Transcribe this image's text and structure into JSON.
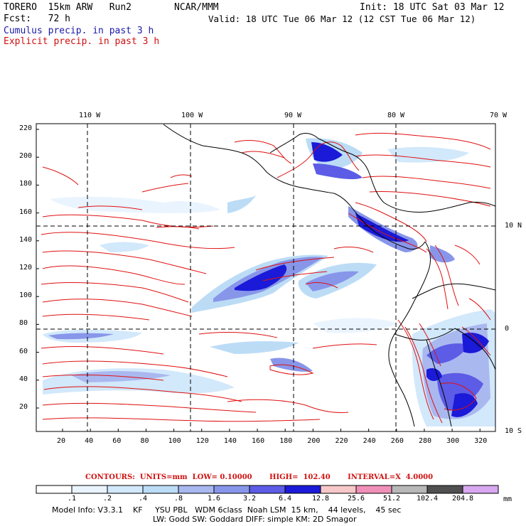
{
  "header": {
    "model": "TORERO  15km ARW   Run2",
    "org": "NCAR/MMM",
    "init": "Init: 18 UTC Sat 03 Mar 12",
    "fcst": "Fcst:   72 h",
    "valid": "Valid: 18 UTC Tue 06 Mar 12 (12 CST Tue 06 Mar 12)",
    "field1": "Cumulus precip. in past 3 h",
    "field2": "Explicit precip. in past 3 h"
  },
  "map": {
    "top_lon_labels": [
      "110 W",
      "100 W",
      "90 W",
      "80 W",
      "70 W"
    ],
    "right_lat_labels": [
      "10 N",
      "0",
      "10 S"
    ],
    "y_ticks": [
      "220",
      "200",
      "180",
      "160",
      "140",
      "120",
      "100",
      "80",
      "60",
      "40",
      "20"
    ],
    "x_ticks": [
      "20",
      "40",
      "60",
      "80",
      "100",
      "120",
      "140",
      "160",
      "180",
      "200",
      "220",
      "240",
      "260",
      "280",
      "300",
      "320"
    ],
    "colors": {
      "cumulus": "#2020e0",
      "explicit": "#e01010",
      "coast": "#000000",
      "grid": "#000000"
    }
  },
  "legend": {
    "contours": "CONTOURS:  UNITS=mm  LOW= 0.10000       HIGH=  102.40       INTERVAL=X  4.0000",
    "labels": [
      ".1",
      ".2",
      ".4",
      ".8",
      "1.6",
      "3.2",
      "6.4",
      "12.8",
      "25.6",
      "51.2",
      "102.4",
      "204.8"
    ],
    "unit": "mm",
    "colors": [
      "#ffffff",
      "#eaf4ff",
      "#d2e8fb",
      "#bcdcf6",
      "#aab8f0",
      "#8896ea",
      "#5c5ce6",
      "#1a1ad8",
      "#f8c8c8",
      "#f090b8",
      "#b8b8b8",
      "#505050",
      "#d8a8f0"
    ]
  },
  "info": {
    "line1": "Model Info: V3.3.1    KF     YSU PBL   WDM 6class  Noah LSM  15 km,    44 levels,    45 sec",
    "line2": "LW: Godd SW: Goddard DIFF: simple KM: 2D Smagor"
  }
}
